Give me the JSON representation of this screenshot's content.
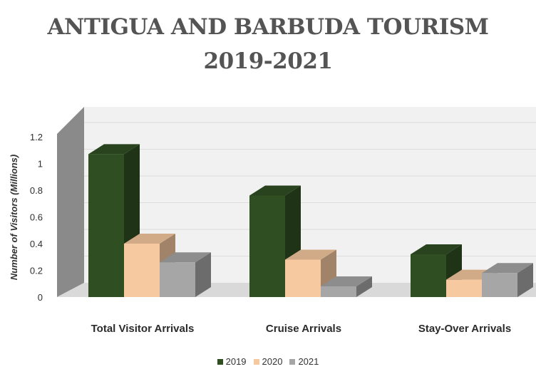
{
  "chart_data": {
    "type": "bar",
    "title_lines": [
      "ANTIGUA AND BARBUDA TOURISM",
      "2019-2021"
    ],
    "ylabel": "Number of Visitors (Millions)",
    "xlabel": "",
    "categories": [
      "Total Visitor Arrivals",
      "Cruise Arrivals",
      "Stay-Over Arrivals"
    ],
    "series": [
      {
        "name": "2019",
        "values": [
          1.07,
          0.76,
          0.32
        ],
        "color": "#2f4f22"
      },
      {
        "name": "2020",
        "values": [
          0.4,
          0.28,
          0.13
        ],
        "color": "#f6c9a0"
      },
      {
        "name": "2021",
        "values": [
          0.26,
          0.08,
          0.18
        ],
        "color": "#a6a6a6"
      }
    ],
    "yticks": [
      "0",
      "0.2",
      "0.4",
      "0.6",
      "0.8",
      "1",
      "1.2"
    ],
    "ylim": [
      0,
      1.2
    ],
    "grid": true,
    "legend_position": "bottom"
  }
}
